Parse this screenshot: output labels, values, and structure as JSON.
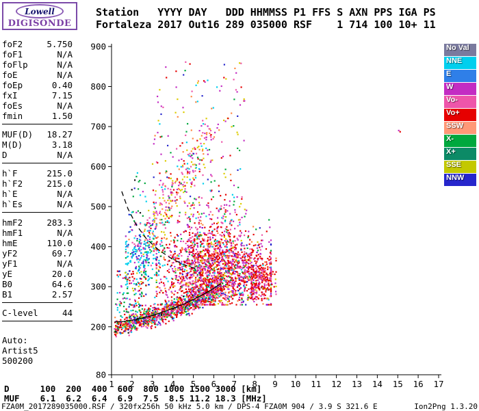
{
  "logo": {
    "line1": "Lowell",
    "line2": "DIGISONDE"
  },
  "header": {
    "line1": "Station   YYYY DAY   DDD HHMMSS P1 FFS S AXN PPS IGA PS",
    "line2": "Fortaleza 2017 Out16 289 035000 RSF    1 714 100 10+ 11"
  },
  "params": {
    "rows": [
      {
        "label": "foF2",
        "value": "5.750"
      },
      {
        "label": "foF1",
        "value": "N/A"
      },
      {
        "label": "foFlp",
        "value": "N/A"
      },
      {
        "label": "foE",
        "value": "N/A"
      },
      {
        "label": "foEp",
        "value": "0.40"
      },
      {
        "label": "fxI",
        "value": "7.15"
      },
      {
        "label": "foEs",
        "value": "N/A"
      },
      {
        "label": "fmin",
        "value": "1.50",
        "divider_after": true
      },
      {
        "label": "MUF(D)",
        "value": "18.27"
      },
      {
        "label": "M(D)",
        "value": "3.18"
      },
      {
        "label": "D",
        "value": "N/A",
        "divider_after": true
      },
      {
        "label": "h`F",
        "value": "215.0"
      },
      {
        "label": "h`F2",
        "value": "215.0"
      },
      {
        "label": "h`E",
        "value": "N/A"
      },
      {
        "label": "h`Es",
        "value": "N/A",
        "divider_after": true
      },
      {
        "label": "hmF2",
        "value": "283.3"
      },
      {
        "label": "hmF1",
        "value": "N/A"
      },
      {
        "label": "hmE",
        "value": "110.0"
      },
      {
        "label": "yF2",
        "value": "69.7"
      },
      {
        "label": "yF1",
        "value": "N/A"
      },
      {
        "label": "yE",
        "value": "20.0"
      },
      {
        "label": "B0",
        "value": "64.6"
      },
      {
        "label": "B1",
        "value": "2.57",
        "divider_after": true
      },
      {
        "label": "C-level",
        "value": "44",
        "divider_after": true
      }
    ],
    "auto_title": "Auto:",
    "auto_lines": [
      "Artist5",
      "500200"
    ]
  },
  "legend": {
    "items": [
      {
        "label": "No Val",
        "color": "#7a7a9e"
      },
      {
        "label": "NNE",
        "color": "#00cfee"
      },
      {
        "label": "E",
        "color": "#2f7fe8"
      },
      {
        "label": "W",
        "color": "#c32cc3"
      },
      {
        "label": "Vo-",
        "color": "#ee55aa"
      },
      {
        "label": "Vo+",
        "color": "#e60000"
      },
      {
        "label": "SSW",
        "color": "#ff9877"
      },
      {
        "label": "X-",
        "color": "#00a83e"
      },
      {
        "label": "X+",
        "color": "#0c8a66"
      },
      {
        "label": "SSE",
        "color": "#c3c800"
      },
      {
        "label": "NNW",
        "color": "#2626cc"
      }
    ]
  },
  "chart_data": {
    "type": "scatter",
    "title": "",
    "xlabel": "",
    "ylabel": "",
    "x_unit": "MHz",
    "y_unit": "km",
    "xlim": [
      1,
      17
    ],
    "ylim": [
      80,
      900
    ],
    "x_ticks": [
      1,
      2,
      3,
      4,
      5,
      6,
      7,
      8,
      9,
      10,
      11,
      12,
      13,
      14,
      15,
      16,
      17
    ],
    "y_ticks": [
      900,
      800,
      700,
      600,
      500,
      400,
      300,
      200,
      80
    ],
    "grid": false,
    "legend_position": "right",
    "curves": [
      {
        "name": "f-region-trace",
        "style": "solid",
        "points": [
          [
            1.15,
            212
          ],
          [
            1.6,
            213
          ],
          [
            2.2,
            218
          ],
          [
            3.0,
            228
          ],
          [
            3.8,
            242
          ],
          [
            4.6,
            258
          ],
          [
            5.4,
            278
          ],
          [
            6.0,
            296
          ],
          [
            6.35,
            308
          ]
        ]
      },
      {
        "name": "transmission-curve",
        "style": "dashed",
        "points": [
          [
            1.5,
            538
          ],
          [
            1.8,
            495
          ],
          [
            2.2,
            455
          ],
          [
            2.7,
            420
          ],
          [
            3.3,
            392
          ],
          [
            4.0,
            368
          ],
          [
            4.7,
            352
          ],
          [
            5.2,
            344
          ]
        ]
      }
    ],
    "scatter_clusters": [
      {
        "kind": "band",
        "n": 1000,
        "f_range": [
          1.15,
          6.4
        ],
        "h_poly": [
          188,
          7,
          1.6
        ],
        "h_spread": 12,
        "colors": [
          [
            "#e60000",
            28
          ],
          [
            "#c32cc3",
            18
          ],
          [
            "#00a83e",
            14
          ],
          [
            "#ddcc00",
            8
          ],
          [
            "#00cfee",
            8
          ],
          [
            "#2626cc",
            6
          ],
          [
            "#ee55aa",
            8
          ],
          [
            "#ff8844",
            6
          ],
          [
            "#111111",
            4
          ]
        ]
      },
      {
        "kind": "blob",
        "n": 1900,
        "f_mean": 6.1,
        "f_sigma": 1.35,
        "f_clip": [
          3.2,
          8.8
        ],
        "h_mean": 340,
        "h_sigma": 50,
        "h_clip": [
          255,
          480
        ],
        "colors": [
          [
            "#e60000",
            38
          ],
          [
            "#c32cc3",
            22
          ],
          [
            "#ee55aa",
            14
          ],
          [
            "#ff8844",
            7
          ],
          [
            "#ddcc00",
            5
          ],
          [
            "#00a83e",
            6
          ],
          [
            "#00cfee",
            3
          ],
          [
            "#2626cc",
            3
          ],
          [
            "#8800cc",
            2
          ]
        ]
      },
      {
        "kind": "line",
        "n": 320,
        "p0": [
          2.35,
          390
        ],
        "p1": [
          5.7,
          680
        ],
        "f_sigma": 0.28,
        "h_sigma": 30,
        "colors": [
          [
            "#ee55aa",
            25
          ],
          [
            "#ddcc00",
            20
          ],
          [
            "#ff8844",
            15
          ],
          [
            "#c32cc3",
            15
          ],
          [
            "#e60000",
            10
          ],
          [
            "#00a83e",
            8
          ],
          [
            "#00cfee",
            7
          ]
        ]
      },
      {
        "kind": "blob",
        "n": 200,
        "f_mean": 2.5,
        "f_sigma": 0.5,
        "f_clip": [
          1.7,
          3.6
        ],
        "h_mean": 380,
        "h_sigma": 38,
        "h_clip": [
          305,
          455
        ],
        "colors": [
          [
            "#00cfee",
            55
          ],
          [
            "#2626cc",
            20
          ],
          [
            "#c32cc3",
            10
          ],
          [
            "#00a83e",
            8
          ],
          [
            "#ee55aa",
            7
          ]
        ]
      },
      {
        "kind": "blob",
        "n": 220,
        "f_mean": 8.35,
        "f_sigma": 0.35,
        "f_clip": [
          7.85,
          9.05
        ],
        "h_mean": 320,
        "h_sigma": 28,
        "h_clip": [
          270,
          385
        ],
        "colors": [
          [
            "#e60000",
            60
          ],
          [
            "#c32cc3",
            15
          ],
          [
            "#ee55aa",
            10
          ],
          [
            "#ff8844",
            10
          ],
          [
            "#ddcc00",
            5
          ]
        ]
      },
      {
        "kind": "uniform",
        "n": 150,
        "f_range": [
          4.8,
          7.4
        ],
        "h_range": [
          400,
          525
        ],
        "colors": [
          [
            "#e60000",
            25
          ],
          [
            "#c32cc3",
            20
          ],
          [
            "#ee55aa",
            15
          ],
          [
            "#ddcc00",
            12
          ],
          [
            "#00a83e",
            10
          ],
          [
            "#ff8844",
            10
          ],
          [
            "#00cfee",
            8
          ]
        ]
      },
      {
        "kind": "uniform",
        "n": 170,
        "f_range": [
          3.0,
          7.6
        ],
        "h_range": [
          460,
          865
        ],
        "colors": [
          [
            "#c32cc3",
            20
          ],
          [
            "#e60000",
            18
          ],
          [
            "#ddcc00",
            14
          ],
          [
            "#00a83e",
            12
          ],
          [
            "#00cfee",
            10
          ],
          [
            "#2626cc",
            10
          ],
          [
            "#ee55aa",
            8
          ],
          [
            "#ff8844",
            8
          ]
        ]
      },
      {
        "kind": "uniform",
        "n": 130,
        "f_range": [
          1.2,
          2.7
        ],
        "h_range": [
          235,
          340
        ],
        "colors": [
          [
            "#00a83e",
            25
          ],
          [
            "#e60000",
            20
          ],
          [
            "#00cfee",
            15
          ],
          [
            "#c32cc3",
            15
          ],
          [
            "#ddcc00",
            10
          ],
          [
            "#2626cc",
            15
          ]
        ]
      },
      {
        "kind": "uniform",
        "n": 30,
        "f_range": [
          1.8,
          3.1
        ],
        "h_range": [
          430,
          585
        ],
        "colors": [
          [
            "#00cfee",
            30
          ],
          [
            "#2626cc",
            20
          ],
          [
            "#c32cc3",
            20
          ],
          [
            "#111111",
            15
          ],
          [
            "#00a83e",
            15
          ]
        ]
      },
      {
        "kind": "points",
        "pts": [
          [
            15.05,
            690,
            "#c32cc3"
          ],
          [
            15.12,
            687,
            "#e60000"
          ]
        ]
      }
    ]
  },
  "bottom_table": {
    "line1": "D      100  200  400  600  800 1000 1500 3000 [km]",
    "line2": "MUF    6.1  6.2  6.4  6.9  7.5  8.5 11.2 18.3 [MHz]"
  },
  "footer": {
    "left": "FZA0M_2017289035000.RSF / 320fx256h 50 kHz 5.0 km / DPS-4 FZA0M 904 / 3.9 S 321.6 E",
    "right": "Ion2Png 1.3.20"
  }
}
